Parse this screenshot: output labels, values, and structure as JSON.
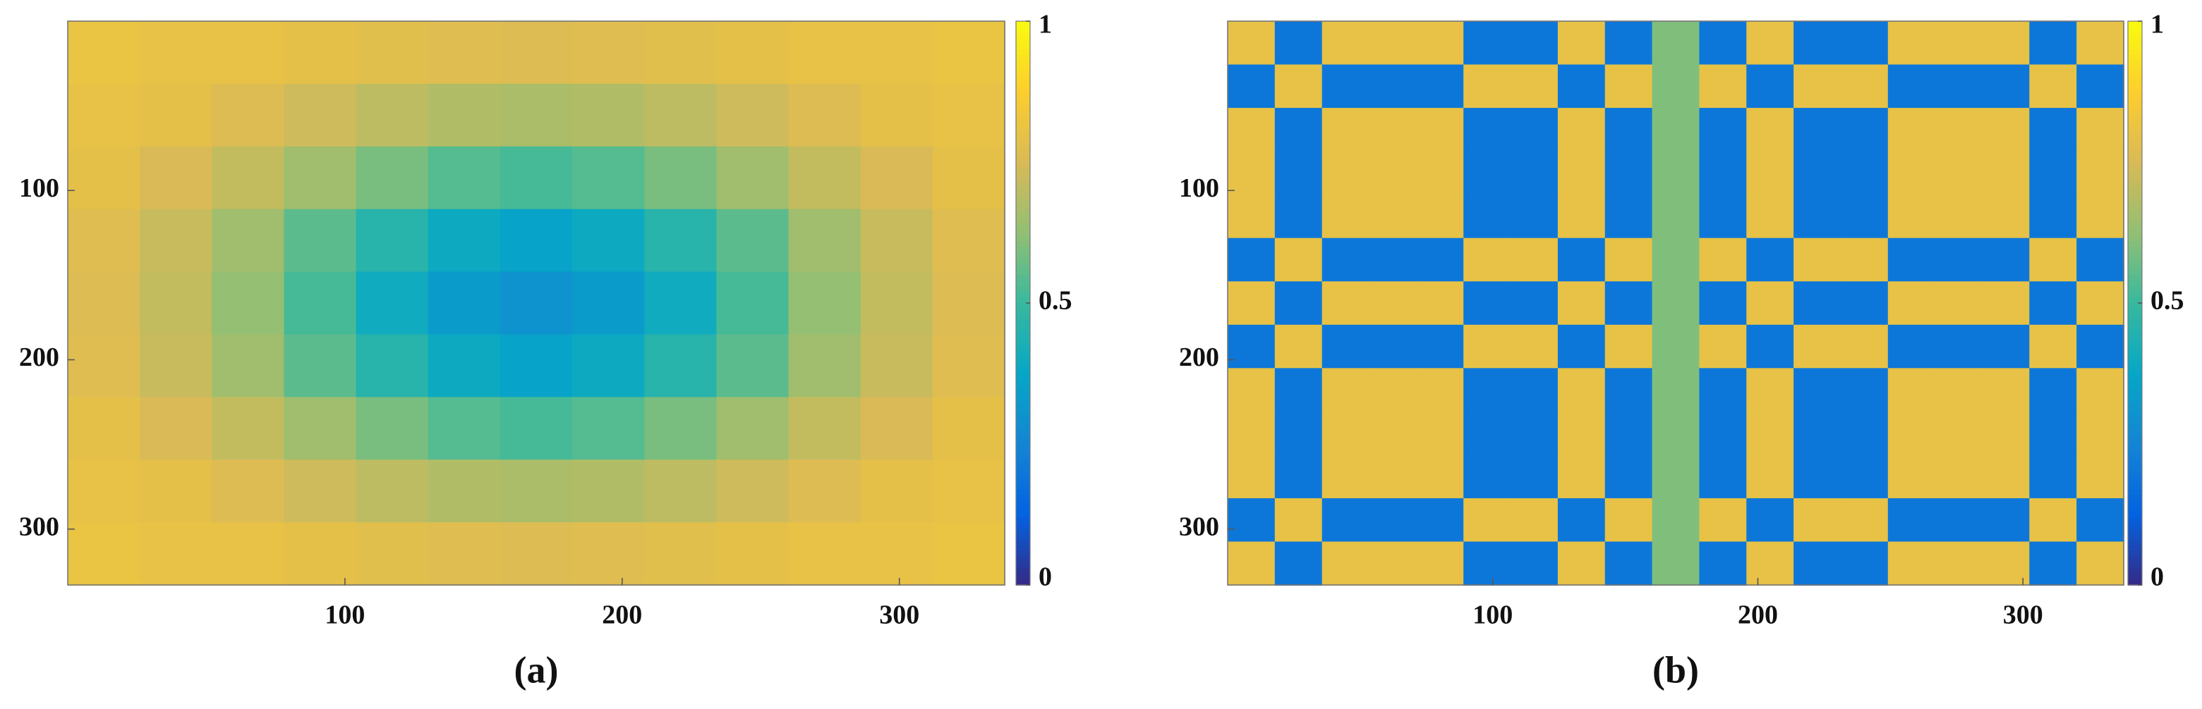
{
  "chart_data": [
    {
      "type": "heatmap",
      "label": "(a)",
      "colormap": "parula",
      "y_reversed": true,
      "xlim": [
        0,
        338
      ],
      "ylim": [
        0,
        333
      ],
      "xticks": [
        100,
        200,
        300
      ],
      "yticks": [
        100,
        200,
        300
      ],
      "clim": [
        0,
        1
      ],
      "cticks": [
        0,
        0.5,
        1
      ],
      "z": [
        [
          0.81,
          0.8,
          0.8,
          0.79,
          0.78,
          0.77,
          0.76,
          0.77,
          0.78,
          0.79,
          0.8,
          0.8,
          0.81
        ],
        [
          0.8,
          0.79,
          0.76,
          0.73,
          0.7,
          0.68,
          0.67,
          0.68,
          0.7,
          0.73,
          0.76,
          0.79,
          0.8
        ],
        [
          0.79,
          0.75,
          0.71,
          0.65,
          0.59,
          0.54,
          0.52,
          0.54,
          0.59,
          0.65,
          0.71,
          0.75,
          0.79
        ],
        [
          0.77,
          0.72,
          0.65,
          0.55,
          0.46,
          0.39,
          0.36,
          0.39,
          0.46,
          0.55,
          0.65,
          0.72,
          0.77
        ],
        [
          0.76,
          0.71,
          0.63,
          0.52,
          0.4,
          0.33,
          0.3,
          0.33,
          0.4,
          0.52,
          0.63,
          0.71,
          0.76
        ],
        [
          0.77,
          0.72,
          0.65,
          0.55,
          0.46,
          0.39,
          0.36,
          0.39,
          0.46,
          0.55,
          0.65,
          0.72,
          0.77
        ],
        [
          0.79,
          0.75,
          0.71,
          0.65,
          0.59,
          0.54,
          0.52,
          0.54,
          0.59,
          0.65,
          0.71,
          0.75,
          0.79
        ],
        [
          0.8,
          0.79,
          0.76,
          0.73,
          0.7,
          0.68,
          0.67,
          0.68,
          0.7,
          0.73,
          0.76,
          0.79,
          0.8
        ],
        [
          0.81,
          0.8,
          0.8,
          0.79,
          0.78,
          0.77,
          0.76,
          0.77,
          0.78,
          0.79,
          0.8,
          0.8,
          0.81
        ]
      ]
    },
    {
      "type": "heatmap",
      "label": "(b)",
      "colormap": "parula",
      "y_reversed": true,
      "xlim": [
        0,
        338
      ],
      "ylim": [
        0,
        333
      ],
      "xticks": [
        100,
        200,
        300
      ],
      "yticks": [
        100,
        200,
        300
      ],
      "clim": [
        0,
        1
      ],
      "cticks": [
        0,
        0.5,
        1
      ],
      "z": [
        [
          0.8,
          0.2,
          0.8,
          0.8,
          0.8,
          0.2,
          0.2,
          0.8,
          0.2,
          0.6,
          0.2,
          0.8,
          0.2,
          0.2,
          0.8,
          0.8,
          0.8,
          0.2,
          0.8
        ],
        [
          0.2,
          0.8,
          0.2,
          0.2,
          0.2,
          0.8,
          0.8,
          0.2,
          0.8,
          0.6,
          0.8,
          0.2,
          0.8,
          0.8,
          0.2,
          0.2,
          0.2,
          0.8,
          0.2
        ],
        [
          0.8,
          0.2,
          0.8,
          0.8,
          0.8,
          0.2,
          0.2,
          0.8,
          0.2,
          0.6,
          0.2,
          0.8,
          0.2,
          0.2,
          0.8,
          0.8,
          0.8,
          0.2,
          0.8
        ],
        [
          0.8,
          0.2,
          0.8,
          0.8,
          0.8,
          0.2,
          0.2,
          0.8,
          0.2,
          0.6,
          0.2,
          0.8,
          0.2,
          0.2,
          0.8,
          0.8,
          0.8,
          0.2,
          0.8
        ],
        [
          0.8,
          0.2,
          0.8,
          0.8,
          0.8,
          0.2,
          0.2,
          0.8,
          0.2,
          0.6,
          0.2,
          0.8,
          0.2,
          0.2,
          0.8,
          0.8,
          0.8,
          0.2,
          0.8
        ],
        [
          0.2,
          0.8,
          0.2,
          0.2,
          0.2,
          0.8,
          0.8,
          0.2,
          0.8,
          0.6,
          0.8,
          0.2,
          0.8,
          0.8,
          0.2,
          0.2,
          0.2,
          0.8,
          0.2
        ],
        [
          0.8,
          0.2,
          0.8,
          0.8,
          0.8,
          0.2,
          0.2,
          0.8,
          0.2,
          0.6,
          0.2,
          0.8,
          0.2,
          0.2,
          0.8,
          0.8,
          0.8,
          0.2,
          0.8
        ],
        [
          0.2,
          0.8,
          0.2,
          0.2,
          0.2,
          0.8,
          0.8,
          0.2,
          0.8,
          0.6,
          0.8,
          0.2,
          0.8,
          0.8,
          0.2,
          0.2,
          0.2,
          0.8,
          0.2
        ],
        [
          0.8,
          0.2,
          0.8,
          0.8,
          0.8,
          0.2,
          0.2,
          0.8,
          0.2,
          0.6,
          0.2,
          0.8,
          0.2,
          0.2,
          0.8,
          0.8,
          0.8,
          0.2,
          0.8
        ],
        [
          0.8,
          0.2,
          0.8,
          0.8,
          0.8,
          0.2,
          0.2,
          0.8,
          0.2,
          0.6,
          0.2,
          0.8,
          0.2,
          0.2,
          0.8,
          0.8,
          0.8,
          0.2,
          0.8
        ],
        [
          0.8,
          0.2,
          0.8,
          0.8,
          0.8,
          0.2,
          0.2,
          0.8,
          0.2,
          0.6,
          0.2,
          0.8,
          0.2,
          0.2,
          0.8,
          0.8,
          0.8,
          0.2,
          0.8
        ],
        [
          0.2,
          0.8,
          0.2,
          0.2,
          0.2,
          0.8,
          0.8,
          0.2,
          0.8,
          0.6,
          0.8,
          0.2,
          0.8,
          0.8,
          0.2,
          0.2,
          0.2,
          0.8,
          0.2
        ],
        [
          0.8,
          0.2,
          0.8,
          0.8,
          0.8,
          0.2,
          0.2,
          0.8,
          0.2,
          0.6,
          0.2,
          0.8,
          0.2,
          0.2,
          0.8,
          0.8,
          0.8,
          0.2,
          0.8
        ]
      ]
    }
  ]
}
